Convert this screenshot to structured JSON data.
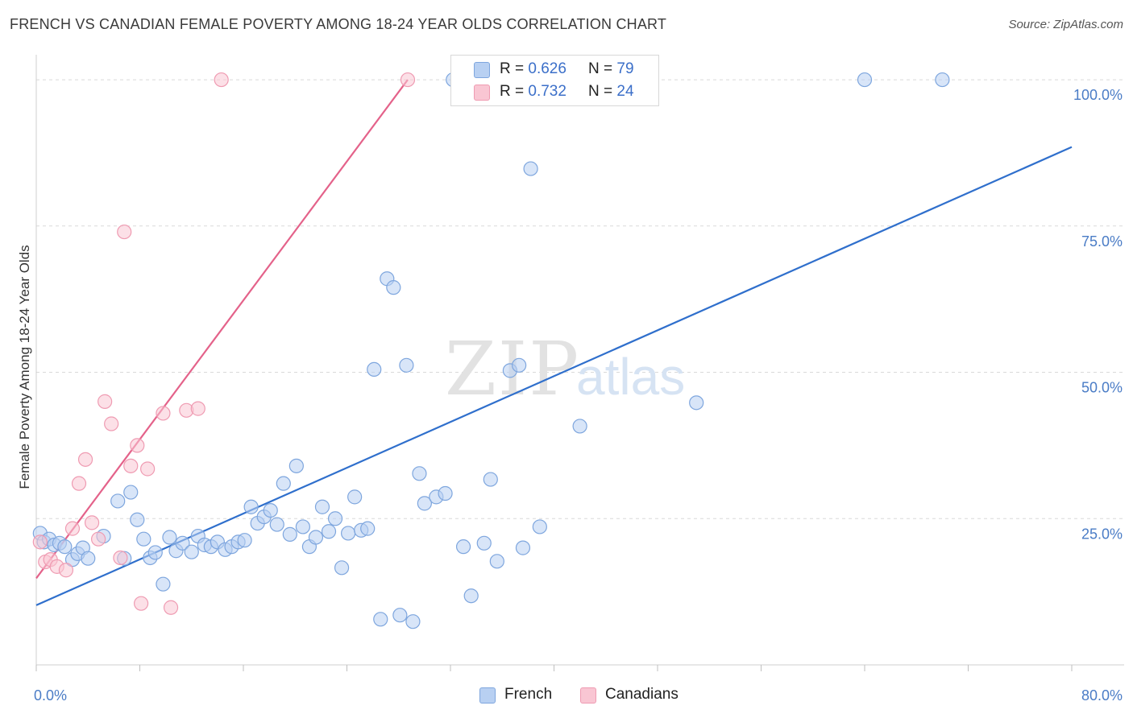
{
  "title": "FRENCH VS CANADIAN FEMALE POVERTY AMONG 18-24 YEAR OLDS CORRELATION CHART",
  "source": "Source: ZipAtlas.com",
  "watermark": {
    "zip": "ZIP",
    "atlas": "atlas"
  },
  "colors": {
    "french_fill": "#b8d0f2",
    "french_stroke": "#7ea6de",
    "french_line": "#2f6fcc",
    "canadian_fill": "#f9c6d3",
    "canadian_stroke": "#ef9bb2",
    "canadian_line": "#e4628a",
    "tick_text": "#4a7cc6",
    "grid": "#d9d9d9"
  },
  "legend": {
    "rows": [
      {
        "r_label": "R = ",
        "r_value": "0.626",
        "n_label": "N = ",
        "n_value": "79"
      },
      {
        "r_label": "R = ",
        "r_value": "0.732",
        "n_label": "N = ",
        "n_value": "24"
      }
    ]
  },
  "bottom_legend": [
    "French",
    "Canadians"
  ],
  "chart_data": {
    "type": "scatter",
    "title": "FRENCH VS CANADIAN FEMALE POVERTY AMONG 18-24 YEAR OLDS CORRELATION CHART",
    "xlabel": "",
    "ylabel": "Female Poverty Among 18-24 Year Olds",
    "xlim": [
      0,
      80
    ],
    "ylim": [
      0,
      104
    ],
    "x_tick_labels": [
      "0.0%",
      "80.0%"
    ],
    "y_ticks": [
      25,
      50,
      75,
      100
    ],
    "y_tick_labels": [
      "25.0%",
      "50.0%",
      "75.0%",
      "100.0%"
    ],
    "grid": true,
    "legend_position": "top-center",
    "series": [
      {
        "name": "French",
        "r": 0.626,
        "n": 79,
        "trend": [
          [
            0,
            10.2
          ],
          [
            80,
            88.5
          ]
        ],
        "points": [
          [
            0.3,
            22.5
          ],
          [
            0.6,
            21.0
          ],
          [
            1.0,
            21.5
          ],
          [
            1.4,
            20.5
          ],
          [
            1.8,
            20.8
          ],
          [
            2.2,
            20.2
          ],
          [
            2.8,
            18.0
          ],
          [
            3.2,
            19.0
          ],
          [
            3.6,
            20.0
          ],
          [
            4.0,
            18.2
          ],
          [
            5.2,
            22.0
          ],
          [
            6.3,
            28.0
          ],
          [
            6.8,
            18.2
          ],
          [
            7.3,
            29.5
          ],
          [
            7.8,
            24.8
          ],
          [
            8.3,
            21.5
          ],
          [
            8.8,
            18.3
          ],
          [
            9.2,
            19.2
          ],
          [
            9.8,
            13.8
          ],
          [
            10.3,
            21.8
          ],
          [
            10.8,
            19.5
          ],
          [
            11.3,
            20.8
          ],
          [
            12.0,
            19.3
          ],
          [
            12.5,
            22.0
          ],
          [
            13.0,
            20.5
          ],
          [
            13.5,
            20.2
          ],
          [
            14.0,
            21.0
          ],
          [
            14.6,
            19.7
          ],
          [
            15.1,
            20.2
          ],
          [
            15.6,
            21.0
          ],
          [
            16.1,
            21.3
          ],
          [
            16.6,
            27.0
          ],
          [
            17.1,
            24.2
          ],
          [
            17.6,
            25.3
          ],
          [
            18.1,
            26.4
          ],
          [
            18.6,
            24.0
          ],
          [
            19.1,
            31.0
          ],
          [
            19.6,
            22.3
          ],
          [
            20.1,
            34.0
          ],
          [
            20.6,
            23.6
          ],
          [
            21.1,
            20.2
          ],
          [
            21.6,
            21.8
          ],
          [
            22.1,
            27.0
          ],
          [
            22.6,
            22.8
          ],
          [
            23.1,
            25.0
          ],
          [
            23.6,
            16.6
          ],
          [
            24.1,
            22.5
          ],
          [
            24.6,
            28.7
          ],
          [
            25.1,
            23.0
          ],
          [
            25.6,
            23.3
          ],
          [
            26.1,
            50.5
          ],
          [
            26.6,
            7.8
          ],
          [
            27.1,
            66.0
          ],
          [
            27.6,
            64.5
          ],
          [
            28.1,
            8.5
          ],
          [
            28.6,
            51.2
          ],
          [
            29.1,
            7.4
          ],
          [
            29.6,
            32.7
          ],
          [
            30.0,
            27.6
          ],
          [
            30.9,
            28.7
          ],
          [
            31.6,
            29.3
          ],
          [
            32.2,
            100.0
          ],
          [
            33.0,
            20.2
          ],
          [
            33.6,
            11.8
          ],
          [
            34.6,
            20.8
          ],
          [
            35.1,
            31.7
          ],
          [
            35.6,
            17.7
          ],
          [
            36.6,
            50.3
          ],
          [
            37.3,
            51.2
          ],
          [
            37.6,
            20.0
          ],
          [
            38.2,
            84.8
          ],
          [
            38.9,
            23.6
          ],
          [
            40.0,
            100.0
          ],
          [
            42.0,
            40.8
          ],
          [
            51.0,
            44.8
          ],
          [
            64.0,
            100.0
          ],
          [
            70.0,
            100.0
          ]
        ]
      },
      {
        "name": "Canadians",
        "r": 0.732,
        "n": 24,
        "trend": [
          [
            0,
            14.8
          ],
          [
            28.7,
            100.0
          ]
        ],
        "points": [
          [
            0.3,
            21.0
          ],
          [
            0.7,
            17.6
          ],
          [
            1.1,
            18.0
          ],
          [
            1.6,
            16.8
          ],
          [
            2.3,
            16.2
          ],
          [
            2.8,
            23.3
          ],
          [
            3.3,
            31.0
          ],
          [
            3.8,
            35.1
          ],
          [
            4.3,
            24.3
          ],
          [
            4.8,
            21.5
          ],
          [
            5.3,
            45.0
          ],
          [
            5.8,
            41.2
          ],
          [
            6.5,
            18.3
          ],
          [
            6.8,
            74.0
          ],
          [
            7.3,
            34.0
          ],
          [
            7.8,
            37.5
          ],
          [
            8.1,
            10.5
          ],
          [
            8.6,
            33.5
          ],
          [
            9.8,
            43.0
          ],
          [
            10.4,
            9.8
          ],
          [
            11.6,
            43.5
          ],
          [
            12.5,
            43.8
          ],
          [
            14.3,
            100.0
          ],
          [
            28.7,
            100.0
          ]
        ]
      }
    ]
  }
}
